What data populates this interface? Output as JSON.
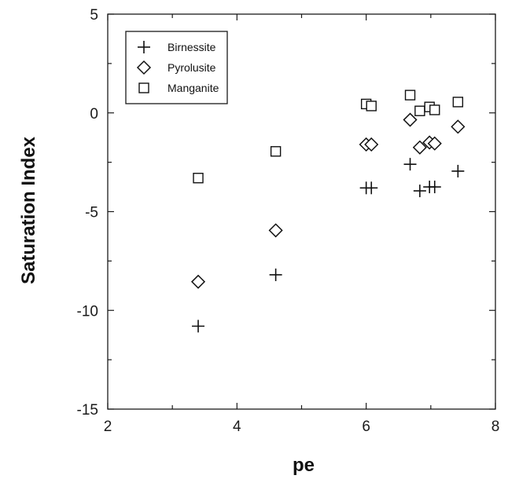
{
  "chart_data": {
    "type": "scatter",
    "xlabel": "pe",
    "ylabel": "Saturation Index",
    "xlim": [
      2,
      8
    ],
    "ylim": [
      -15,
      5
    ],
    "xticks": [
      2,
      4,
      6,
      8
    ],
    "yticks": [
      5,
      0,
      -5,
      -10,
      -15
    ],
    "xtick_labels": [
      "2",
      "4",
      "6",
      "8"
    ],
    "ytick_labels": [
      "5",
      "0",
      "-5",
      "-10",
      "-15"
    ],
    "grid": false,
    "legend_position": "top-left",
    "series": [
      {
        "name": "Birnessite",
        "marker": "plus",
        "points": [
          [
            3.4,
            -10.8
          ],
          [
            4.6,
            -8.2
          ],
          [
            6.0,
            -3.8
          ],
          [
            6.08,
            -3.8
          ],
          [
            6.68,
            -2.6
          ],
          [
            6.83,
            -3.95
          ],
          [
            6.98,
            -3.75
          ],
          [
            7.06,
            -3.75
          ],
          [
            7.42,
            -2.95
          ]
        ]
      },
      {
        "name": "Pyrolusite",
        "marker": "diamond",
        "points": [
          [
            3.4,
            -8.55
          ],
          [
            4.6,
            -5.95
          ],
          [
            6.0,
            -1.6
          ],
          [
            6.08,
            -1.6
          ],
          [
            6.68,
            -0.35
          ],
          [
            6.83,
            -1.75
          ],
          [
            6.98,
            -1.5
          ],
          [
            7.06,
            -1.55
          ],
          [
            7.42,
            -0.7
          ]
        ]
      },
      {
        "name": "Manganite",
        "marker": "square",
        "points": [
          [
            3.4,
            -3.3
          ],
          [
            4.6,
            -1.95
          ],
          [
            6.0,
            0.45
          ],
          [
            6.08,
            0.35
          ],
          [
            6.68,
            0.9
          ],
          [
            6.83,
            0.1
          ],
          [
            6.98,
            0.3
          ],
          [
            7.06,
            0.15
          ],
          [
            7.42,
            0.55
          ]
        ]
      }
    ]
  }
}
